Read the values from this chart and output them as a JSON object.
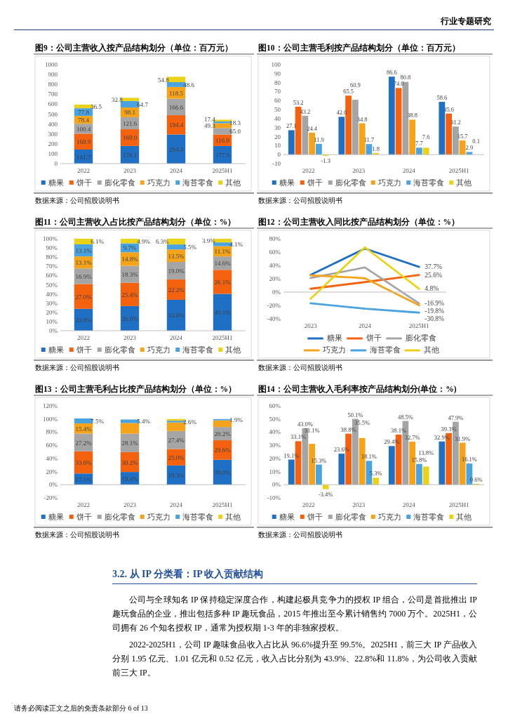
{
  "chart_data": [
    {
      "type": "bar",
      "stacked": true,
      "title": "图9：公司主营收入按产品结构划分（单位：百万元）",
      "categories": [
        "2022",
        "2023",
        "2024",
        "2025H1"
      ],
      "ylim": [
        0,
        1000
      ],
      "yticks": [
        0,
        100,
        200,
        300,
        400,
        500,
        600,
        700,
        800,
        900,
        1000
      ],
      "legend": "bottom",
      "annotations": [
        "数据来源：公司招股说明书"
      ],
      "series": [
        {
          "name": "糖果",
          "color": "#1f6fc5",
          "values": [
            141.7,
            178.1,
            294.4,
            177.9
          ],
          "value_labels": [
            "141.7",
            "178.1",
            "294.4",
            "177.9"
          ]
        },
        {
          "name": "饼干",
          "color": "#f4620f",
          "values": [
            160.9,
            169.0,
            194.4,
            116.0
          ],
          "value_labels": [
            "160.9",
            "169.0",
            "194.4",
            "116.0"
          ]
        },
        {
          "name": "膨化零食",
          "color": "#a5a5a5",
          "values": [
            100.4,
            121.6,
            166.6,
            65.0
          ],
          "value_labels": [
            "100.4",
            "121.6",
            "166.6",
            "65.0"
          ]
        },
        {
          "name": "巧克力",
          "color": "#f5a31a",
          "values": [
            78.4,
            98.1,
            118.5,
            49.3
          ],
          "value_labels": [
            "78.4",
            "98.1",
            "118.5",
            "49.3"
          ]
        },
        {
          "name": "海苔零食",
          "color": "#4aa3df",
          "values": [
            77.8,
            64.7,
            48.6,
            18.3
          ],
          "value_labels": [
            "77.8",
            "64.7",
            "48.6",
            "18.3"
          ]
        },
        {
          "name": "其他",
          "color": "#ead21a",
          "values": [
            36.5,
            32.8,
            54.8,
            17.4
          ],
          "value_labels": [
            "36.5",
            "32.8",
            "54.8",
            "17.4"
          ]
        }
      ]
    },
    {
      "type": "bar",
      "title": "图10：公司主营毛利按产品结构划分（单位：百万元）",
      "categories": [
        "2022",
        "2023",
        "2024",
        "2025H1"
      ],
      "ylim": [
        -10,
        100
      ],
      "yticks": [
        -10,
        0,
        10,
        20,
        30,
        40,
        50,
        60,
        70,
        80,
        90,
        100
      ],
      "legend": "bottom",
      "annotations": [
        "数据来源：公司招股说明书"
      ],
      "series": [
        {
          "name": "糖果",
          "color": "#1f6fc5",
          "values": [
            27.1,
            42.0,
            86.6,
            58.6
          ],
          "value_labels": [
            "27.1",
            "42.0",
            "86.6",
            "58.6"
          ]
        },
        {
          "name": "饼干",
          "color": "#f4620f",
          "values": [
            53.2,
            65.5,
            74.0,
            45.6
          ],
          "value_labels": [
            "53.2",
            "65.5",
            "74.0",
            "45.6"
          ]
        },
        {
          "name": "膨化零食",
          "color": "#a5a5a5",
          "values": [
            43.2,
            60.9,
            80.8,
            31.2
          ],
          "value_labels": [
            "43.2",
            "60.9",
            "80.8",
            "31.2"
          ]
        },
        {
          "name": "巧克力",
          "color": "#f5a31a",
          "values": [
            24.4,
            34.8,
            38.8,
            15.7
          ],
          "value_labels": [
            "24.4",
            "34.8",
            "38.8",
            "15.7"
          ]
        },
        {
          "name": "海苔零食",
          "color": "#4aa3df",
          "values": [
            11.9,
            11.7,
            7.7,
            2.9
          ],
          "value_labels": [
            "11.9",
            "11.7",
            "7.7",
            "2.9"
          ]
        },
        {
          "name": "其他",
          "color": "#ead21a",
          "values": [
            -1.3,
            1.8,
            7.6,
            0.1
          ],
          "value_labels": [
            "-1.3",
            "1.8",
            "7.6",
            "0.1"
          ]
        }
      ]
    },
    {
      "type": "bar",
      "stacked": true,
      "title": "图11：公司主营收入占比按产品结构划分（单位：%）",
      "categories": [
        "2022",
        "2023",
        "2024",
        "2025H1"
      ],
      "ylim": [
        0,
        100
      ],
      "yticks": [
        {
          "value": 0,
          "label": "0%"
        },
        {
          "value": 10,
          "label": "10%"
        },
        {
          "value": 20,
          "label": "20%"
        },
        {
          "value": 30,
          "label": "30%"
        },
        {
          "value": 40,
          "label": "40%"
        },
        {
          "value": 50,
          "label": "50%"
        },
        {
          "value": 60,
          "label": "60%"
        },
        {
          "value": 70,
          "label": "70%"
        },
        {
          "value": 80,
          "label": "80%"
        },
        {
          "value": 90,
          "label": "90%"
        },
        {
          "value": 100,
          "label": "100%"
        }
      ],
      "legend": "bottom",
      "annotations": [
        "数据来源：公司招股说明书"
      ],
      "series": [
        {
          "name": "糖果",
          "color": "#1f6fc5",
          "values": [
            23.8,
            26.8,
            33.6,
            40.1
          ],
          "value_labels": [
            "23.8%",
            "26.8%",
            "33.6%",
            "40.1%"
          ]
        },
        {
          "name": "饼干",
          "color": "#f4620f",
          "values": [
            27.0,
            25.4,
            22.2,
            26.1
          ],
          "value_labels": [
            "27.0%",
            "25.4%",
            "22.2%",
            "26.1%"
          ]
        },
        {
          "name": "膨化零食",
          "color": "#a5a5a5",
          "values": [
            16.9,
            18.3,
            19.0,
            14.6
          ],
          "value_labels": [
            "16.9%",
            "18.3%",
            "19.0%",
            "14.6%"
          ]
        },
        {
          "name": "巧克力",
          "color": "#f5a31a",
          "values": [
            13.1,
            14.8,
            13.5,
            11.1
          ],
          "value_labels": [
            "13.1%",
            "14.8%",
            "13.5%",
            "11.1%"
          ]
        },
        {
          "name": "海苔零食",
          "color": "#4aa3df",
          "values": [
            13.1,
            9.7,
            5.5,
            4.1
          ],
          "value_labels": [
            "13.1%",
            "9.7%",
            "5.5%",
            "4.1%"
          ]
        },
        {
          "name": "其他",
          "color": "#ead21a",
          "values": [
            6.1,
            4.9,
            6.3,
            3.9
          ],
          "value_labels": [
            "6.1%",
            "4.9%",
            "6.3%",
            "3.9%"
          ]
        }
      ]
    },
    {
      "type": "line",
      "title": "图12：公司主营收入同比按产品结构划分（单位：%）",
      "categories": [
        "2023",
        "2024",
        "2025H1"
      ],
      "ylim": [
        -40,
        80
      ],
      "yticks": [
        {
          "value": -40,
          "label": "-40%"
        },
        {
          "value": -20,
          "label": "-20%"
        },
        {
          "value": 0,
          "label": "0%"
        },
        {
          "value": 20,
          "label": "20%"
        },
        {
          "value": 40,
          "label": "40%"
        },
        {
          "value": 60,
          "label": "60%"
        },
        {
          "value": 80,
          "label": "80%"
        }
      ],
      "legend": "bottom",
      "marker": "none",
      "line_style": "solid",
      "annotations": [
        "数据来源：公司招股说明书"
      ],
      "series": [
        {
          "name": "糖果",
          "color": "#1f6fc5",
          "values": [
            25.7,
            65.3,
            37.7
          ],
          "value_labels": [
            null,
            null,
            "37.7%"
          ]
        },
        {
          "name": "饼干",
          "color": "#f4620f",
          "values": [
            5.0,
            15.0,
            25.6
          ],
          "value_labels": [
            null,
            null,
            "25.6%"
          ]
        },
        {
          "name": "膨化零食",
          "color": "#a5a5a5",
          "values": [
            21.1,
            37.0,
            -16.9
          ],
          "value_labels": [
            null,
            null,
            "-16.9%"
          ]
        },
        {
          "name": "巧克力",
          "color": "#f5a31a",
          "values": [
            25.1,
            20.8,
            -19.8
          ],
          "value_labels": [
            null,
            null,
            "-19.8%"
          ]
        },
        {
          "name": "海苔零食",
          "color": "#4aa3df",
          "values": [
            -16.8,
            -24.9,
            -30.8
          ],
          "value_labels": [
            null,
            null,
            "-30.8%"
          ]
        },
        {
          "name": "其他",
          "color": "#ead21a",
          "values": [
            -10.1,
            67.1,
            4.8
          ],
          "value_labels": [
            null,
            null,
            "4.8%"
          ]
        }
      ]
    },
    {
      "type": "bar",
      "stacked": true,
      "title": "图13：公司主营毛利占比按产品结构划分（单位：%）",
      "categories": [
        "2022",
        "2023",
        "2024",
        "2025H1"
      ],
      "ylim": [
        -20,
        120
      ],
      "yticks": [
        {
          "value": -20,
          "label": "-20%"
        },
        {
          "value": 0,
          "label": "0%"
        },
        {
          "value": 20,
          "label": "20%"
        },
        {
          "value": 40,
          "label": "40%"
        },
        {
          "value": 60,
          "label": "60%"
        },
        {
          "value": 80,
          "label": "80%"
        },
        {
          "value": 100,
          "label": "100%"
        },
        {
          "value": 120,
          "label": "120%"
        }
      ],
      "legend": "bottom",
      "annotations": [
        "数据来源：公司招股说明书"
      ],
      "series": [
        {
          "name": "糖果",
          "color": "#1f6fc5",
          "values": [
            17.1,
            19.4,
            29.3,
            38.0
          ],
          "value_labels": [
            "17.1%",
            "19.4%",
            "29.3%",
            "38.0%"
          ]
        },
        {
          "name": "饼干",
          "color": "#f4620f",
          "values": [
            33.6,
            30.2,
            25.0,
            29.6
          ],
          "value_labels": [
            "33.6%",
            "30.2%",
            "25.0%",
            "29.6%"
          ]
        },
        {
          "name": "膨化零食",
          "color": "#a5a5a5",
          "values": [
            27.2,
            28.1,
            27.4,
            20.2
          ],
          "value_labels": [
            "27.2%",
            "28.1%",
            "27.4%",
            "20.2%"
          ]
        },
        {
          "name": "巧克力",
          "color": "#f5a31a",
          "values": [
            15.4,
            16.1,
            13.1,
            10.2
          ],
          "value_labels": [
            "15.4%",
            null,
            null,
            null
          ]
        },
        {
          "name": "海苔零食",
          "color": "#4aa3df",
          "values": [
            7.5,
            5.4,
            2.6,
            1.9
          ],
          "value_labels": [
            "7.5%",
            "5.4%",
            "2.6%",
            "1.9%"
          ]
        },
        {
          "name": "其他",
          "color": "#ead21a",
          "values": [
            null,
            null,
            2.6,
            null
          ],
          "value_labels": [
            null,
            null,
            null,
            null
          ]
        }
      ]
    },
    {
      "type": "bar",
      "title": "图14：公司主营收入毛利率按产品结构划分(单位：%)",
      "categories": [
        "2022",
        "2023",
        "2024",
        "2025H1"
      ],
      "ylim": [
        -10,
        60
      ],
      "yticks": [
        {
          "value": -10,
          "label": "-10%"
        },
        {
          "value": 0,
          "label": "0%"
        },
        {
          "value": 10,
          "label": "10%"
        },
        {
          "value": 20,
          "label": "20%"
        },
        {
          "value": 30,
          "label": "30%"
        },
        {
          "value": 40,
          "label": "40%"
        },
        {
          "value": 50,
          "label": "50%"
        },
        {
          "value": 60,
          "label": "60%"
        }
      ],
      "legend": "bottom",
      "annotations": [
        "数据来源：公司招股说明书"
      ],
      "series": [
        {
          "name": "糖果",
          "color": "#1f6fc5",
          "values": [
            19.1,
            23.6,
            29.4,
            32.9
          ],
          "value_labels": [
            "19.1%",
            "23.6%",
            "29.4%",
            "32.9%"
          ]
        },
        {
          "name": "饼干",
          "color": "#f4620f",
          "values": [
            33.1,
            38.8,
            38.1,
            39.3
          ],
          "value_labels": [
            "33.1%",
            "38.8%",
            "38.1%",
            "39.3%"
          ]
        },
        {
          "name": "膨化零食",
          "color": "#a5a5a5",
          "values": [
            43.0,
            50.1,
            48.5,
            47.9
          ],
          "value_labels": [
            "43.0%",
            "50.1%",
            "48.5%",
            "47.9%"
          ]
        },
        {
          "name": "巧克力",
          "color": "#f5a31a",
          "values": [
            31.1,
            35.5,
            32.7,
            31.9
          ],
          "value_labels": [
            "31.1%",
            "35.5%",
            "32.7%",
            "31.9%"
          ]
        },
        {
          "name": "海苔零食",
          "color": "#4aa3df",
          "values": [
            15.3,
            18.1,
            15.8,
            16.1
          ],
          "value_labels": [
            "15.3%",
            "18.1%",
            "15.8%",
            "16.1%"
          ]
        },
        {
          "name": "其他",
          "color": "#ead21a",
          "values": [
            -3.4,
            5.3,
            13.8,
            0.6
          ],
          "value_labels": [
            "-3.4%",
            "5.3%",
            "13.8%",
            "0.6%"
          ]
        }
      ]
    },
    {
      "type": "other",
      "title": "3.2. 从 IP 分类看：IP 收入贡献结构",
      "annotations": [
        "行业专题研究",
        "公司与全球知名 IP 保持稳定深度合作，构建起极具竞争力的授权 IP 组合，公司是首批推出 IP 趣玩食品的企业，推出包括多种 IP 趣玩食品，2015 年推出至今累计销售约 7000 万个。2025H1，公司拥有 26 个知名授权 IP，通常为授权期 1-3 年的非独家授权。",
        "2022-2025H1，公司 IP 趣味食品收入占比从 96.6%提升至 99.5%。2025H1，前三大 IP 产品收入分别 1.95 亿元、1.01 亿元和 0.52 亿元，收入占比分别为 43.9%、22.8%和 11.8%，为公司收入贡献前三大 IP。",
        "请务必阅读正文之后的免责条款部分 6 of 13"
      ]
    }
  ]
}
